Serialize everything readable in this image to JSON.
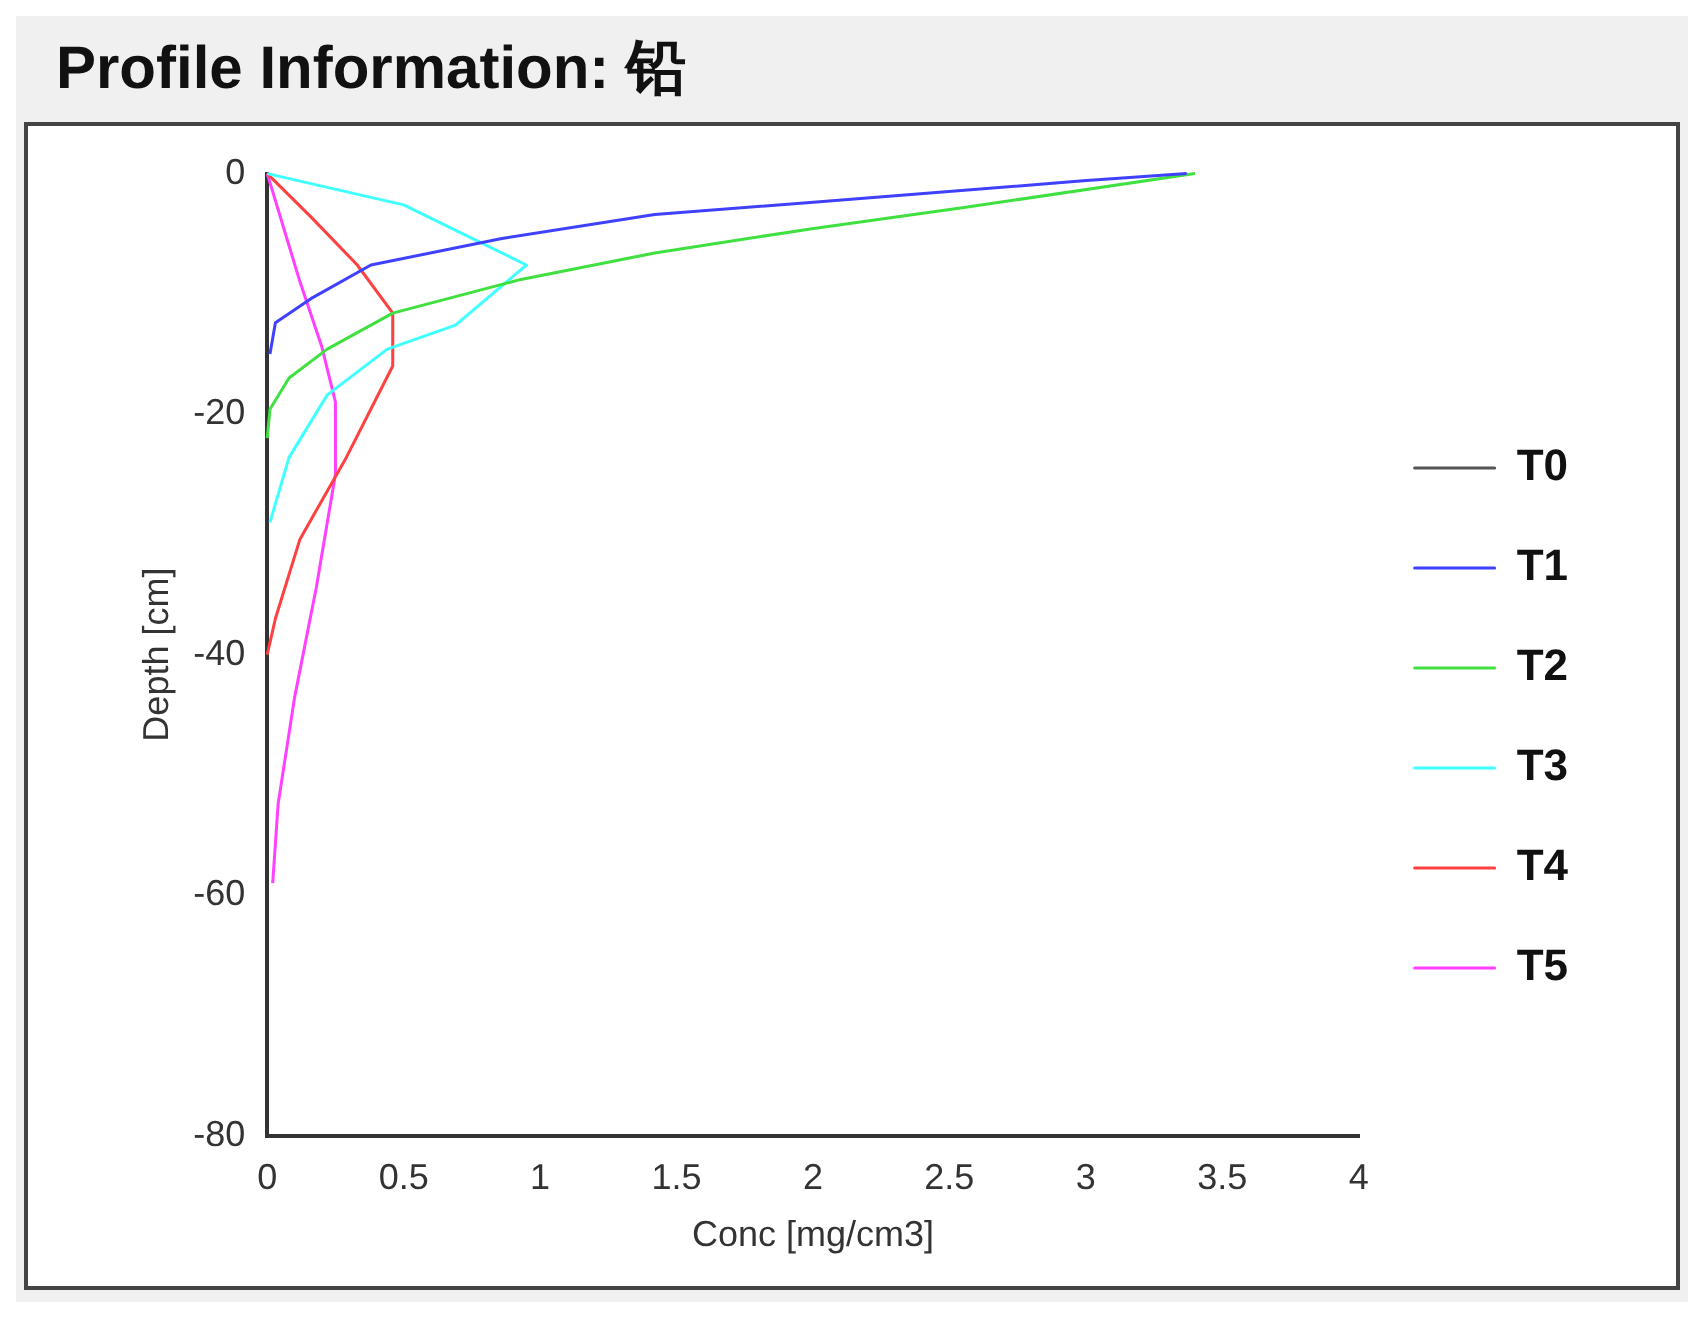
{
  "chart_data": {
    "type": "line",
    "title": "Profile Information:  铅",
    "xlabel": "Conc [mg/cm3]",
    "ylabel": "Depth [cm]",
    "xlim": [
      0,
      4
    ],
    "ylim": [
      -80,
      0
    ],
    "xticks": [
      0,
      0.5,
      1,
      1.5,
      2,
      2.5,
      3,
      3.5,
      4
    ],
    "yticks": [
      -80,
      -60,
      -40,
      -20,
      0
    ],
    "legend": "right",
    "grid": false,
    "marker": "none",
    "line_style": "solid",
    "series": [
      {
        "name": "T0",
        "color": "#555555",
        "x": [
          null
        ],
        "values": [
          null
        ]
      },
      {
        "name": "T1",
        "color": "#4040ff",
        "x": [
          3.37,
          2.99,
          1.99,
          1.42,
          0.86,
          0.38,
          0.16,
          0.03,
          0.01
        ],
        "values": [
          0,
          -0.6,
          -2.4,
          -3.4,
          -5.4,
          -7.6,
          -10.4,
          -12.4,
          -15
        ]
      },
      {
        "name": "T2",
        "color": "#40e040",
        "x": [
          3.4,
          2.56,
          1.99,
          1.42,
          0.93,
          0.46,
          0.22,
          0.08,
          0.01,
          0
        ],
        "values": [
          0,
          -2.8,
          -4.6,
          -6.6,
          -8.8,
          -11.6,
          -14.6,
          -17,
          -19.6,
          -22
        ]
      },
      {
        "name": "T3",
        "color": "#40ffff",
        "x": [
          0,
          0.5,
          0.95,
          0.69,
          0.44,
          0.22,
          0.08,
          0.01
        ],
        "values": [
          0,
          -2.6,
          -7.6,
          -12.6,
          -14.6,
          -18.4,
          -23.6,
          -29
        ]
      },
      {
        "name": "T4",
        "color": "#ff4040",
        "x": [
          0,
          0.16,
          0.33,
          0.46,
          0.46,
          0.29,
          0.12,
          0.03,
          0
        ],
        "values": [
          0,
          -3.6,
          -7.6,
          -11.6,
          -16,
          -23.6,
          -30.4,
          -37,
          -40
        ]
      },
      {
        "name": "T5",
        "color": "#ff40ff",
        "x": [
          0,
          0.12,
          0.2,
          0.25,
          0.25,
          0.18,
          0.1,
          0.04,
          0.02
        ],
        "values": [
          0,
          -9,
          -14.4,
          -19,
          -25,
          -34.4,
          -43.6,
          -52.4,
          -59
        ]
      }
    ]
  }
}
